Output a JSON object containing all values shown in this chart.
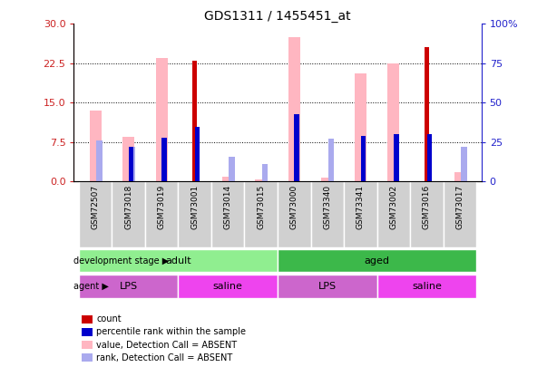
{
  "title": "GDS1311 / 1455451_at",
  "samples": [
    "GSM72507",
    "GSM73018",
    "GSM73019",
    "GSM73001",
    "GSM73014",
    "GSM73015",
    "GSM73000",
    "GSM73340",
    "GSM73341",
    "GSM73002",
    "GSM73016",
    "GSM73017"
  ],
  "value_absent": [
    13.5,
    8.5,
    23.5,
    0.0,
    1.0,
    0.5,
    27.5,
    0.8,
    20.5,
    22.5,
    0.0,
    1.8
  ],
  "count": [
    0.0,
    0.0,
    0.0,
    23.0,
    0.0,
    0.0,
    0.0,
    0.0,
    0.0,
    0.0,
    25.5,
    0.0
  ],
  "percentile_rank": [
    0.0,
    22.0,
    28.0,
    35.0,
    0.0,
    0.0,
    43.0,
    0.0,
    29.0,
    30.0,
    30.0,
    0.0
  ],
  "rank_absent_val": [
    26.0,
    22.0,
    0.0,
    0.0,
    16.0,
    11.0,
    0.0,
    27.0,
    0.0,
    0.0,
    0.0,
    22.0
  ],
  "ylim_left": [
    0,
    30
  ],
  "ylim_right": [
    0,
    100
  ],
  "yticks_left": [
    0,
    7.5,
    15,
    22.5,
    30
  ],
  "yticks_right": [
    0,
    25,
    50,
    75,
    100
  ],
  "development_stage": [
    {
      "label": "adult",
      "start": 0,
      "end": 6,
      "color": "#90EE90"
    },
    {
      "label": "aged",
      "start": 6,
      "end": 12,
      "color": "#3CB84A"
    }
  ],
  "agent": [
    {
      "label": "LPS",
      "start": 0,
      "end": 3,
      "color": "#CC66CC"
    },
    {
      "label": "saline",
      "start": 3,
      "end": 6,
      "color": "#EE44EE"
    },
    {
      "label": "LPS",
      "start": 6,
      "end": 9,
      "color": "#CC66CC"
    },
    {
      "label": "saline",
      "start": 9,
      "end": 12,
      "color": "#EE44EE"
    }
  ],
  "color_count": "#CC0000",
  "color_percentile": "#0000CC",
  "color_value_absent": "#FFB6C1",
  "color_rank_absent": "#AAAAEE",
  "left_axis_color": "#CC2222",
  "right_axis_color": "#2222CC",
  "sample_label_bg": "#D0D0D0",
  "legend_items": [
    [
      "#CC0000",
      "count"
    ],
    [
      "#0000CC",
      "percentile rank within the sample"
    ],
    [
      "#FFB6C1",
      "value, Detection Call = ABSENT"
    ],
    [
      "#AAAAEE",
      "rank, Detection Call = ABSENT"
    ]
  ]
}
